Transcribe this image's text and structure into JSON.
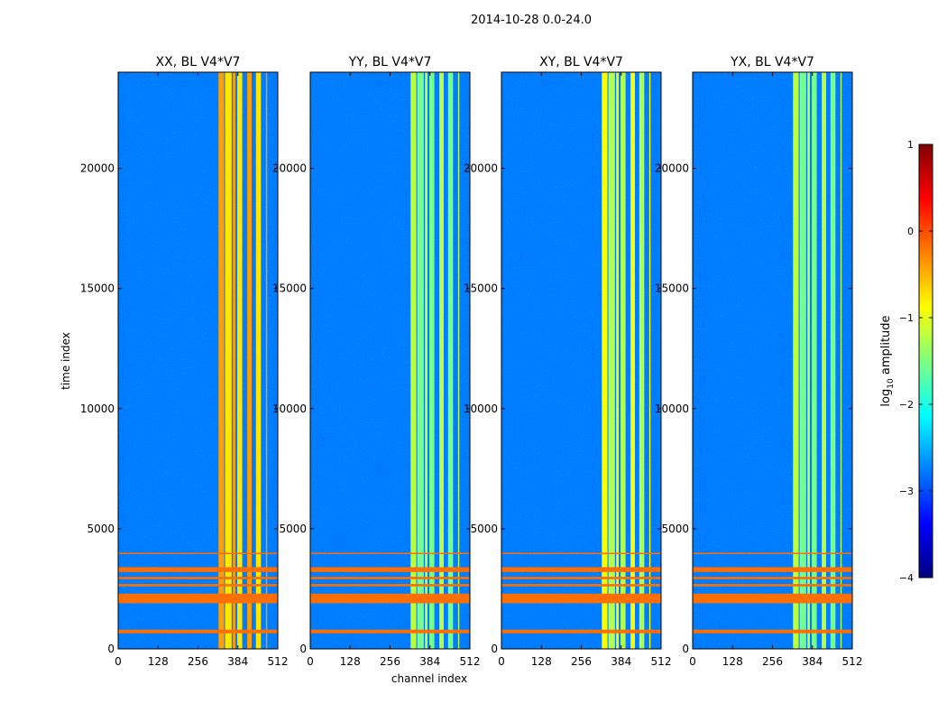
{
  "chart_data": [
    {
      "type": "heatmap",
      "title": "XX, BL V4*V7",
      "xlabel": "",
      "ylabel": "time index",
      "xlim": [
        0,
        512
      ],
      "ylim": [
        0,
        24000
      ],
      "xticks": [
        "0",
        "128",
        "256",
        "384",
        "512"
      ],
      "yticks": [
        "0",
        "5000",
        "10000",
        "15000",
        "20000"
      ],
      "bright_bands": [
        [
          322,
          340
        ],
        [
          343,
          364
        ],
        [
          368,
          376
        ],
        [
          382,
          398
        ],
        [
          414,
          428
        ],
        [
          442,
          458
        ],
        [
          474,
          478
        ]
      ],
      "bright_level": -0.4,
      "background_level": -2.8,
      "flagged_rows": [
        [
          650,
          800
        ],
        [
          1900,
          2300
        ],
        [
          2600,
          2700
        ],
        [
          2900,
          3000
        ],
        [
          3200,
          3400
        ],
        [
          3950,
          4000
        ]
      ]
    },
    {
      "type": "heatmap",
      "title": "YY, BL V4*V7",
      "xlabel": "channel index",
      "ylabel": "",
      "xlim": [
        0,
        512
      ],
      "ylim": [
        0,
        24000
      ],
      "xticks": [
        "0",
        "128",
        "256",
        "384",
        "512"
      ],
      "yticks": [
        "0",
        "5000",
        "10000",
        "15000",
        "20000"
      ],
      "bright_bands": [
        [
          322,
          340
        ],
        [
          343,
          364
        ],
        [
          368,
          376
        ],
        [
          382,
          398
        ],
        [
          414,
          428
        ],
        [
          442,
          458
        ],
        [
          474,
          478
        ]
      ],
      "bright_level": -1.2,
      "background_level": -2.8,
      "flagged_rows": [
        [
          650,
          800
        ],
        [
          1900,
          2300
        ],
        [
          2600,
          2700
        ],
        [
          2900,
          3000
        ],
        [
          3200,
          3400
        ],
        [
          3950,
          4000
        ]
      ]
    },
    {
      "type": "heatmap",
      "title": "XY, BL V4*V7",
      "xlabel": "",
      "ylabel": "",
      "xlim": [
        0,
        512
      ],
      "ylim": [
        0,
        24000
      ],
      "xticks": [
        "0",
        "128",
        "256",
        "384",
        "512"
      ],
      "yticks": [
        "0",
        "5000",
        "10000",
        "15000",
        "20000"
      ],
      "bright_bands": [
        [
          322,
          340
        ],
        [
          343,
          364
        ],
        [
          368,
          376
        ],
        [
          382,
          398
        ],
        [
          414,
          428
        ],
        [
          442,
          458
        ],
        [
          474,
          478
        ]
      ],
      "bright_level": -0.9,
      "background_level": -2.8,
      "flagged_rows": [
        [
          650,
          800
        ],
        [
          1900,
          2300
        ],
        [
          2600,
          2700
        ],
        [
          2900,
          3000
        ],
        [
          3200,
          3400
        ],
        [
          3950,
          4000
        ]
      ]
    },
    {
      "type": "heatmap",
      "title": "YX, BL V4*V7",
      "xlabel": "",
      "ylabel": "",
      "xlim": [
        0,
        512
      ],
      "ylim": [
        0,
        24000
      ],
      "xticks": [
        "0",
        "128",
        "256",
        "384",
        "512"
      ],
      "yticks": [
        "0",
        "5000",
        "10000",
        "15000",
        "20000"
      ],
      "bright_bands": [
        [
          322,
          340
        ],
        [
          343,
          364
        ],
        [
          368,
          376
        ],
        [
          382,
          398
        ],
        [
          414,
          428
        ],
        [
          442,
          458
        ],
        [
          474,
          478
        ]
      ],
      "bright_level": -1.2,
      "background_level": -2.8,
      "flagged_rows": [
        [
          650,
          800
        ],
        [
          1900,
          2300
        ],
        [
          2600,
          2700
        ],
        [
          2900,
          3000
        ],
        [
          3200,
          3400
        ],
        [
          3950,
          4000
        ]
      ]
    }
  ],
  "figure": {
    "suptitle": "2014-10-28 0.0-24.0"
  },
  "colorbar": {
    "label_prefix": "log",
    "label_subscript": "10",
    "label_suffix": " amplitude",
    "range": [
      -4,
      1
    ],
    "ticks": [
      "1",
      "0",
      "−1",
      "−2",
      "−3",
      "−4"
    ],
    "colors": [
      "#00007f",
      "#0000ff",
      "#0080ff",
      "#00ffff",
      "#80ff80",
      "#ffff00",
      "#ff8000",
      "#ff0000",
      "#7f0000"
    ]
  }
}
